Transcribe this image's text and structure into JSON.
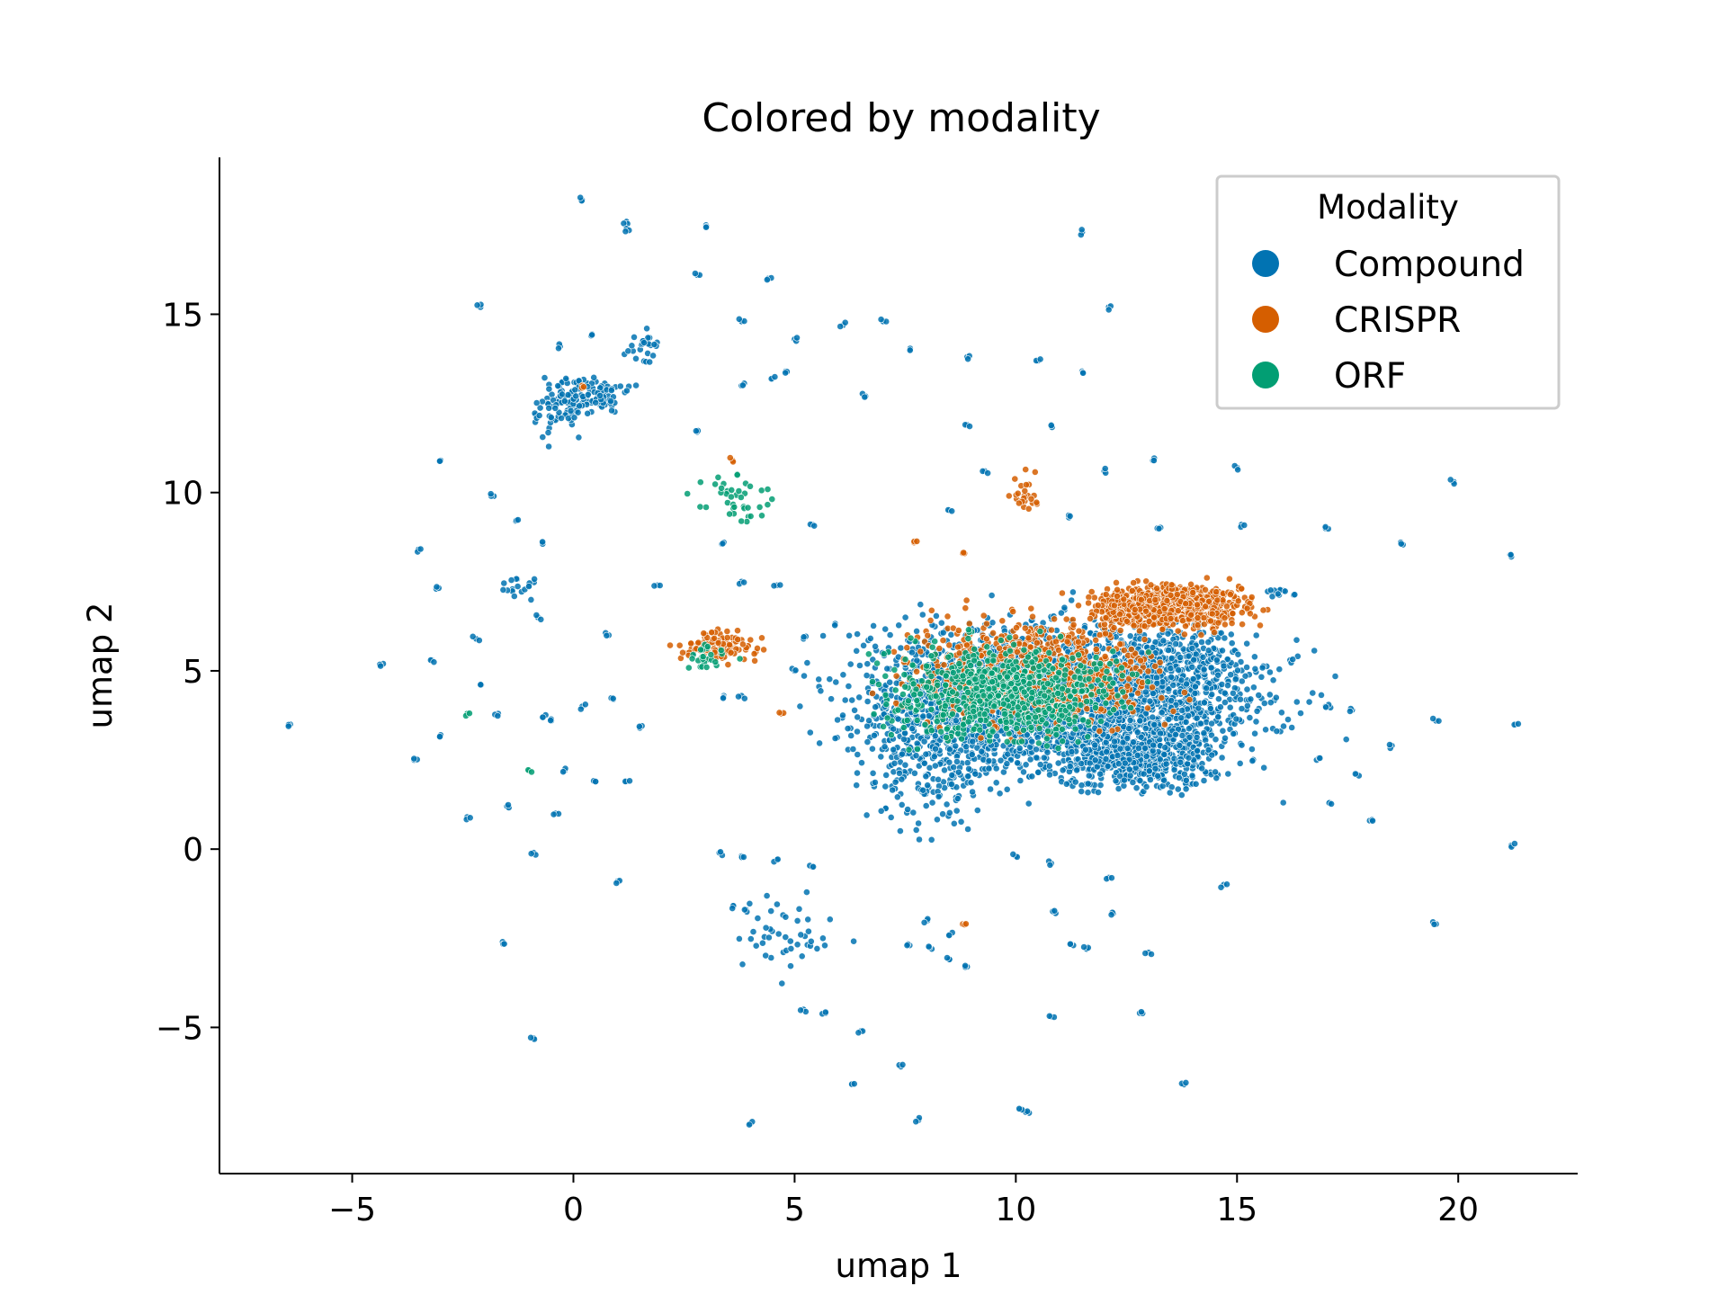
{
  "chart_data": {
    "type": "scatter",
    "title": "Colored by modality",
    "xlabel": "umap 1",
    "ylabel": "umap 2",
    "xlim": [
      -8,
      22.7
    ],
    "ylim": [
      -9.1,
      19.4
    ],
    "xticks": [
      -5,
      0,
      5,
      10,
      15,
      20
    ],
    "yticks": [
      -5,
      0,
      5,
      10,
      15
    ],
    "xtick_labels": [
      "−5",
      "0",
      "5",
      "10",
      "15",
      "20"
    ],
    "ytick_labels": [
      "−5",
      "0",
      "5",
      "10",
      "15"
    ],
    "legend": {
      "title": "Modality",
      "placement": "top-right",
      "entries": [
        "Compound",
        "CRISPR",
        "ORF"
      ]
    },
    "colors": {
      "Compound": "#0173b2",
      "CRISPR": "#d55e00",
      "ORF": "#029e73"
    },
    "series": [
      {
        "name": "Compound",
        "clusters": [
          {
            "center": [
              11.0,
              4.3
            ],
            "spread": [
              2.4,
              1.1
            ],
            "count": 2200
          },
          {
            "center": [
              12.6,
              2.6
            ],
            "spread": [
              1.0,
              0.5
            ],
            "count": 500
          },
          {
            "center": [
              8.6,
              3.6
            ],
            "spread": [
              1.1,
              1.2
            ],
            "count": 400
          },
          {
            "center": [
              13.6,
              5.0
            ],
            "spread": [
              0.9,
              0.9
            ],
            "count": 350
          },
          {
            "center": [
              0.3,
              12.7
            ],
            "spread": [
              0.5,
              0.3
            ],
            "count": 120
          },
          {
            "center": [
              -0.4,
              12.2
            ],
            "spread": [
              0.3,
              0.4
            ],
            "count": 40
          },
          {
            "center": [
              1.6,
              14.0
            ],
            "spread": [
              0.3,
              0.3
            ],
            "count": 25
          },
          {
            "center": [
              4.8,
              -2.3
            ],
            "spread": [
              0.6,
              0.6
            ],
            "count": 45
          },
          {
            "center": [
              -1.2,
              7.3
            ],
            "spread": [
              0.2,
              0.2
            ],
            "count": 15
          },
          {
            "center": [
              16.0,
              7.2
            ],
            "spread": [
              0.2,
              0.1
            ],
            "count": 12
          },
          {
            "center": [
              8.0,
              1.5
            ],
            "spread": [
              0.8,
              0.7
            ],
            "count": 60
          }
        ],
        "points": [
          [
            0.2,
            18.2
          ],
          [
            1.2,
            17.6
          ],
          [
            1.2,
            17.4
          ],
          [
            3.0,
            17.5
          ],
          [
            11.5,
            17.3
          ],
          [
            2.8,
            16.1
          ],
          [
            4.4,
            16.0
          ],
          [
            -2.1,
            15.2
          ],
          [
            7.0,
            14.8
          ],
          [
            6.1,
            14.7
          ],
          [
            12.1,
            15.2
          ],
          [
            3.8,
            14.8
          ],
          [
            5.0,
            14.3
          ],
          [
            -0.3,
            14.1
          ],
          [
            0.4,
            14.4
          ],
          [
            7.6,
            14.0
          ],
          [
            8.9,
            13.8
          ],
          [
            10.5,
            13.7
          ],
          [
            11.5,
            13.4
          ],
          [
            4.5,
            13.2
          ],
          [
            4.8,
            13.4
          ],
          [
            3.8,
            13.0
          ],
          [
            6.6,
            12.7
          ],
          [
            8.9,
            11.9
          ],
          [
            10.8,
            11.9
          ],
          [
            2.8,
            11.7
          ],
          [
            -3.0,
            10.9
          ],
          [
            9.3,
            10.6
          ],
          [
            12.0,
            10.6
          ],
          [
            13.1,
            10.9
          ],
          [
            15.0,
            10.7
          ],
          [
            19.9,
            10.3
          ],
          [
            -1.8,
            9.9
          ],
          [
            -1.3,
            9.2
          ],
          [
            8.5,
            9.5
          ],
          [
            11.2,
            9.3
          ],
          [
            13.2,
            9.0
          ],
          [
            15.1,
            9.1
          ],
          [
            17.0,
            9.0
          ],
          [
            5.4,
            9.1
          ],
          [
            3.4,
            8.6
          ],
          [
            -0.7,
            8.6
          ],
          [
            -3.5,
            8.4
          ],
          [
            18.7,
            8.6
          ],
          [
            21.2,
            8.2
          ],
          [
            -3.1,
            7.3
          ],
          [
            1.9,
            7.4
          ],
          [
            3.8,
            7.5
          ],
          [
            4.6,
            7.4
          ],
          [
            -0.8,
            6.5
          ],
          [
            -2.2,
            5.9
          ],
          [
            0.8,
            6.0
          ],
          [
            5.2,
            5.9
          ],
          [
            5.9,
            6.3
          ],
          [
            -4.3,
            5.2
          ],
          [
            -3.2,
            5.3
          ],
          [
            2.7,
            5.5
          ],
          [
            5.0,
            5.0
          ],
          [
            -2.1,
            4.6
          ],
          [
            16.2,
            5.3
          ],
          [
            -6.4,
            3.5
          ],
          [
            -1.7,
            3.8
          ],
          [
            -0.7,
            3.7
          ],
          [
            0.2,
            4.0
          ],
          [
            0.9,
            4.2
          ],
          [
            3.4,
            4.3
          ],
          [
            3.8,
            4.3
          ],
          [
            17.0,
            4.0
          ],
          [
            17.6,
            3.9
          ],
          [
            21.3,
            3.5
          ],
          [
            19.5,
            3.6
          ],
          [
            -3.0,
            3.2
          ],
          [
            1.5,
            3.4
          ],
          [
            -3.6,
            2.5
          ],
          [
            -0.2,
            2.2
          ],
          [
            0.5,
            1.9
          ],
          [
            1.2,
            1.9
          ],
          [
            16.8,
            2.5
          ],
          [
            17.7,
            2.1
          ],
          [
            18.5,
            2.9
          ],
          [
            -1.5,
            1.2
          ],
          [
            -2.4,
            0.9
          ],
          [
            -0.4,
            1.0
          ],
          [
            17.1,
            1.3
          ],
          [
            18.0,
            0.8
          ],
          [
            21.2,
            0.1
          ],
          [
            -0.9,
            -0.1
          ],
          [
            3.3,
            -0.1
          ],
          [
            3.8,
            -0.2
          ],
          [
            4.6,
            -0.3
          ],
          [
            5.4,
            -0.5
          ],
          [
            10.0,
            -0.2
          ],
          [
            10.8,
            -0.4
          ],
          [
            12.1,
            -0.8
          ],
          [
            14.7,
            -1.0
          ],
          [
            1.0,
            -0.9
          ],
          [
            3.6,
            -1.6
          ],
          [
            3.9,
            -1.7
          ],
          [
            10.9,
            -1.8
          ],
          [
            12.2,
            -1.8
          ],
          [
            19.5,
            -2.1
          ],
          [
            -1.6,
            -2.6
          ],
          [
            8.0,
            -2.0
          ],
          [
            8.5,
            -2.4
          ],
          [
            11.3,
            -2.7
          ],
          [
            11.6,
            -2.8
          ],
          [
            13.0,
            -2.9
          ],
          [
            5.7,
            -4.6
          ],
          [
            5.2,
            -4.5
          ],
          [
            6.5,
            -5.1
          ],
          [
            10.8,
            -4.7
          ],
          [
            12.8,
            -4.6
          ],
          [
            -0.9,
            -5.3
          ],
          [
            7.4,
            -6.1
          ],
          [
            6.3,
            -6.6
          ],
          [
            13.8,
            -6.6
          ],
          [
            7.8,
            -7.6
          ],
          [
            4.0,
            -7.7
          ],
          [
            10.3,
            -7.4
          ],
          [
            10.1,
            -7.3
          ],
          [
            8.9,
            -3.3
          ],
          [
            8.5,
            -3.1
          ],
          [
            8.1,
            -2.8
          ],
          [
            7.6,
            -2.7
          ],
          [
            -0.5,
            3.6
          ],
          [
            -1.0,
            7.4
          ]
        ]
      },
      {
        "name": "CRISPR",
        "clusters": [
          {
            "center": [
              13.5,
              6.8
            ],
            "spread": [
              0.9,
              0.3
            ],
            "count": 800
          },
          {
            "center": [
              10.5,
              5.0
            ],
            "spread": [
              1.5,
              0.8
            ],
            "count": 700
          },
          {
            "center": [
              3.3,
              5.7
            ],
            "spread": [
              0.5,
              0.25
            ],
            "count": 110
          },
          {
            "center": [
              10.2,
              10.0
            ],
            "spread": [
              0.15,
              0.3
            ],
            "count": 25
          }
        ],
        "points": [
          [
            7.7,
            8.6
          ],
          [
            8.8,
            8.3
          ],
          [
            4.7,
            3.8
          ],
          [
            3.6,
            10.9
          ],
          [
            8.8,
            -2.1
          ],
          [
            0.2,
            13.0
          ],
          [
            15.1,
            7.3
          ],
          [
            14.8,
            7.2
          ]
        ]
      },
      {
        "name": "ORF",
        "clusters": [
          {
            "center": [
              9.8,
              4.4
            ],
            "spread": [
              1.4,
              0.7
            ],
            "count": 700
          },
          {
            "center": [
              3.6,
              9.8
            ],
            "spread": [
              0.45,
              0.4
            ],
            "count": 40
          },
          {
            "center": [
              3.0,
              5.4
            ],
            "spread": [
              0.3,
              0.2
            ],
            "count": 25
          }
        ],
        "points": [
          [
            -2.4,
            3.8
          ],
          [
            -1.0,
            2.2
          ],
          [
            7.5,
            4.1
          ],
          [
            9.0,
            6.1
          ],
          [
            7.3,
            3.9
          ]
        ]
      }
    ]
  }
}
